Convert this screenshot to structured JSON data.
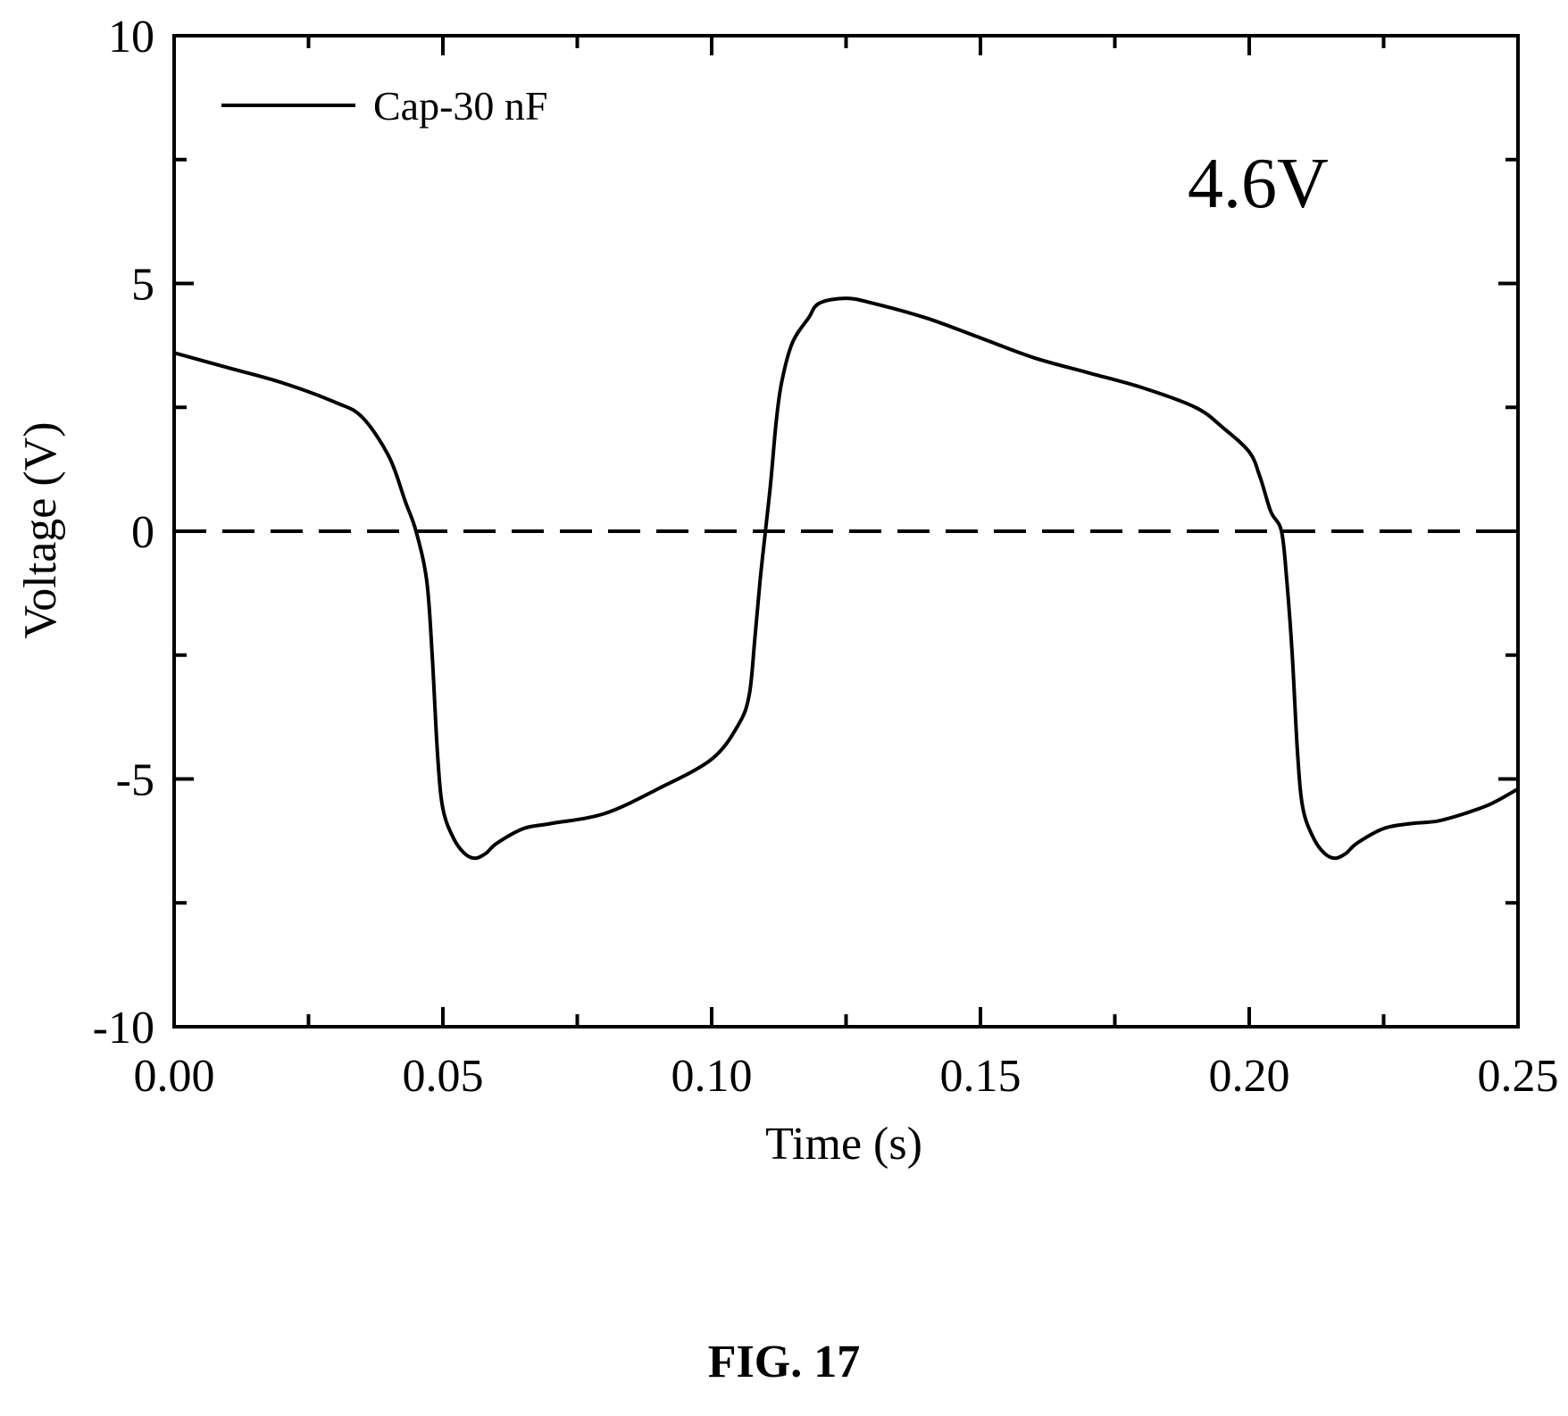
{
  "chart_data": {
    "type": "line",
    "xlabel": "Time (s)",
    "ylabel": "Voltage (V)",
    "xlim": [
      0.0,
      0.25
    ],
    "ylim": [
      -10,
      10
    ],
    "x_ticks": [
      "0.00",
      "0.05",
      "0.10",
      "0.15",
      "0.20",
      "0.25"
    ],
    "y_ticks": [
      "-10",
      "-5",
      "0",
      "5",
      "10"
    ],
    "grid": false,
    "legend_position": "top-left",
    "annotation": "4.6V",
    "reference_line": {
      "y": 0,
      "style": "dashed"
    },
    "series": [
      {
        "name": "Cap-30 nF",
        "x": [
          0.0,
          0.01,
          0.02,
          0.03,
          0.035,
          0.04,
          0.043,
          0.045,
          0.047,
          0.048,
          0.049,
          0.05,
          0.052,
          0.054,
          0.056,
          0.058,
          0.06,
          0.065,
          0.07,
          0.08,
          0.09,
          0.1,
          0.105,
          0.107,
          0.108,
          0.109,
          0.11,
          0.111,
          0.112,
          0.113,
          0.115,
          0.118,
          0.12,
          0.125,
          0.13,
          0.14,
          0.15,
          0.16,
          0.17,
          0.18,
          0.19,
          0.195,
          0.2,
          0.202,
          0.204,
          0.206,
          0.207,
          0.208,
          0.209,
          0.21,
          0.212,
          0.214,
          0.216,
          0.218,
          0.22,
          0.225,
          0.23,
          0.235,
          0.24,
          0.245,
          0.25
        ],
        "y": [
          3.6,
          3.3,
          3.0,
          2.6,
          2.3,
          1.5,
          0.6,
          0.0,
          -1.0,
          -2.5,
          -4.5,
          -5.6,
          -6.2,
          -6.5,
          -6.6,
          -6.5,
          -6.3,
          -6.0,
          -5.9,
          -5.7,
          -5.2,
          -4.6,
          -3.9,
          -3.3,
          -2.2,
          -1.0,
          0.0,
          1.0,
          2.2,
          3.0,
          3.8,
          4.3,
          4.6,
          4.7,
          4.6,
          4.3,
          3.9,
          3.5,
          3.2,
          2.9,
          2.5,
          2.1,
          1.6,
          1.1,
          0.4,
          0.0,
          -1.0,
          -2.5,
          -4.5,
          -5.6,
          -6.2,
          -6.5,
          -6.6,
          -6.5,
          -6.3,
          -6.0,
          -5.9,
          -5.85,
          -5.7,
          -5.5,
          -5.2
        ]
      }
    ]
  },
  "figure_caption": "FIG. 17"
}
